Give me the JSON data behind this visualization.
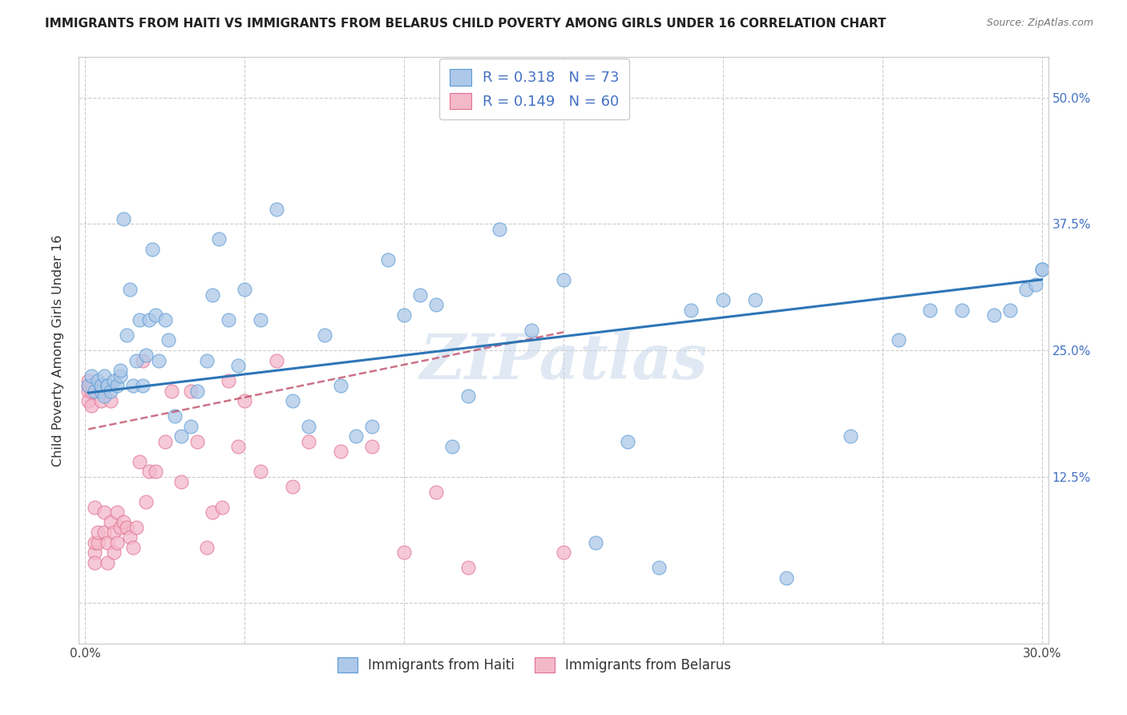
{
  "title": "IMMIGRANTS FROM HAITI VS IMMIGRANTS FROM BELARUS CHILD POVERTY AMONG GIRLS UNDER 16 CORRELATION CHART",
  "source": "Source: ZipAtlas.com",
  "ylabel": "Child Poverty Among Girls Under 16",
  "xlim": [
    -0.002,
    0.302
  ],
  "ylim": [
    -0.04,
    0.54
  ],
  "xticks": [
    0.0,
    0.05,
    0.1,
    0.15,
    0.2,
    0.25,
    0.3
  ],
  "xticklabels": [
    "0.0%",
    "",
    "",
    "",
    "",
    "",
    "30.0%"
  ],
  "yticks": [
    0.0,
    0.125,
    0.25,
    0.375,
    0.5
  ],
  "yticklabels_right": [
    "",
    "12.5%",
    "25.0%",
    "37.5%",
    "50.0%"
  ],
  "haiti_color": "#adc8e8",
  "haiti_edge_color": "#5b9bd5",
  "haiti_line_color": "#2e75b6",
  "belarus_color": "#f4b8cb",
  "belarus_edge_color": "#e07090",
  "belarus_line_color": "#c0506a",
  "haiti_R": 0.318,
  "haiti_N": 73,
  "belarus_R": 0.149,
  "belarus_N": 60,
  "watermark": "ZIPatlas",
  "background_color": "#ffffff",
  "grid_color": "#cccccc",
  "haiti_scatter_x": [
    0.001,
    0.002,
    0.003,
    0.004,
    0.005,
    0.005,
    0.006,
    0.006,
    0.007,
    0.007,
    0.008,
    0.009,
    0.01,
    0.011,
    0.011,
    0.012,
    0.013,
    0.014,
    0.015,
    0.016,
    0.017,
    0.018,
    0.019,
    0.02,
    0.021,
    0.022,
    0.023,
    0.025,
    0.026,
    0.028,
    0.03,
    0.033,
    0.035,
    0.038,
    0.04,
    0.042,
    0.045,
    0.048,
    0.05,
    0.055,
    0.06,
    0.065,
    0.07,
    0.075,
    0.08,
    0.085,
    0.09,
    0.095,
    0.1,
    0.105,
    0.11,
    0.115,
    0.12,
    0.13,
    0.14,
    0.15,
    0.16,
    0.17,
    0.18,
    0.19,
    0.2,
    0.21,
    0.22,
    0.24,
    0.255,
    0.265,
    0.275,
    0.285,
    0.29,
    0.295,
    0.298,
    0.3,
    0.3
  ],
  "haiti_scatter_y": [
    0.215,
    0.225,
    0.21,
    0.22,
    0.21,
    0.215,
    0.205,
    0.225,
    0.215,
    0.215,
    0.21,
    0.22,
    0.215,
    0.225,
    0.23,
    0.38,
    0.265,
    0.31,
    0.215,
    0.24,
    0.28,
    0.215,
    0.245,
    0.28,
    0.35,
    0.285,
    0.24,
    0.28,
    0.26,
    0.185,
    0.165,
    0.175,
    0.21,
    0.24,
    0.305,
    0.36,
    0.28,
    0.235,
    0.31,
    0.28,
    0.39,
    0.2,
    0.175,
    0.265,
    0.215,
    0.165,
    0.175,
    0.34,
    0.285,
    0.305,
    0.295,
    0.155,
    0.205,
    0.37,
    0.27,
    0.32,
    0.06,
    0.16,
    0.035,
    0.29,
    0.3,
    0.3,
    0.025,
    0.165,
    0.26,
    0.29,
    0.29,
    0.285,
    0.29,
    0.31,
    0.315,
    0.33,
    0.33
  ],
  "belarus_scatter_x": [
    0.001,
    0.001,
    0.001,
    0.001,
    0.002,
    0.002,
    0.002,
    0.002,
    0.003,
    0.003,
    0.003,
    0.003,
    0.004,
    0.004,
    0.005,
    0.005,
    0.005,
    0.006,
    0.006,
    0.006,
    0.007,
    0.007,
    0.008,
    0.008,
    0.009,
    0.009,
    0.01,
    0.01,
    0.011,
    0.012,
    0.013,
    0.014,
    0.015,
    0.016,
    0.017,
    0.018,
    0.019,
    0.02,
    0.022,
    0.025,
    0.027,
    0.03,
    0.033,
    0.035,
    0.038,
    0.04,
    0.043,
    0.045,
    0.048,
    0.05,
    0.055,
    0.06,
    0.065,
    0.07,
    0.08,
    0.09,
    0.1,
    0.11,
    0.12,
    0.15
  ],
  "belarus_scatter_y": [
    0.215,
    0.21,
    0.22,
    0.2,
    0.215,
    0.195,
    0.21,
    0.215,
    0.095,
    0.05,
    0.06,
    0.04,
    0.06,
    0.07,
    0.21,
    0.215,
    0.2,
    0.215,
    0.09,
    0.07,
    0.06,
    0.04,
    0.2,
    0.08,
    0.07,
    0.05,
    0.06,
    0.09,
    0.075,
    0.08,
    0.075,
    0.065,
    0.055,
    0.075,
    0.14,
    0.24,
    0.1,
    0.13,
    0.13,
    0.16,
    0.21,
    0.12,
    0.21,
    0.16,
    0.055,
    0.09,
    0.095,
    0.22,
    0.155,
    0.2,
    0.13,
    0.24,
    0.115,
    0.16,
    0.15,
    0.155,
    0.05,
    0.11,
    0.035,
    0.05
  ],
  "haiti_trend_x": [
    0.001,
    0.3
  ],
  "haiti_trend_y": [
    0.208,
    0.32
  ],
  "belarus_trend_x": [
    0.001,
    0.15
  ],
  "belarus_trend_y": [
    0.172,
    0.268
  ]
}
